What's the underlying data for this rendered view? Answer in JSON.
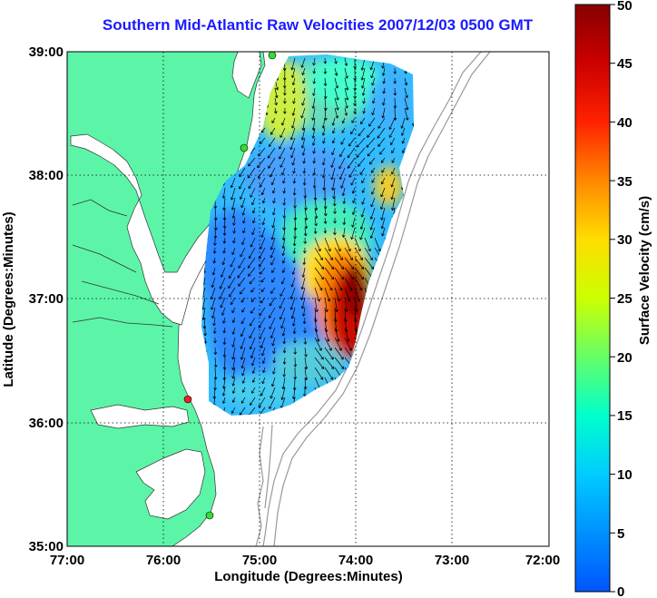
{
  "title": "Southern Mid-Atlantic Raw Velocities 2007/12/03 0500 GMT",
  "axes": {
    "xlabel": "Longitude (Degrees:Minutes)",
    "ylabel": "Latitude (Degrees:Minutes)",
    "x_ticks": [
      "77:00",
      "76:00",
      "75:00",
      "74:00",
      "73:00",
      "72:00"
    ],
    "y_ticks": [
      "39:00",
      "38:00",
      "37:00",
      "36:00",
      "35:00"
    ]
  },
  "colorbar": {
    "label": "Surface Velocity (cm/s)",
    "ticks": [
      "50",
      "45",
      "40",
      "35",
      "30",
      "25",
      "20",
      "15",
      "10",
      "5",
      "0"
    ],
    "min": 0,
    "max": 50
  },
  "colors": {
    "land": "#5cf5a8",
    "ocean": "#ffffff",
    "title": "#1a1aff",
    "bathymetry": "#999999",
    "grid": "#000000",
    "station_green": "#33dd33",
    "station_red": "#ee2222"
  },
  "chart_data": {
    "type": "heatmap",
    "title": "Southern Mid-Atlantic Raw Velocities 2007/12/03 0500 GMT",
    "xlabel": "Longitude (Degrees:Minutes)",
    "ylabel": "Latitude (Degrees:Minutes)",
    "xlim": [
      "77:00",
      "72:00"
    ],
    "ylim": [
      "35:00",
      "39:00"
    ],
    "colorbar_label": "Surface Velocity (cm/s)",
    "colorbar_range": [
      0,
      50
    ],
    "grid": true,
    "stations": [
      {
        "lon": "75:06",
        "lat": "38:57",
        "color": "green"
      },
      {
        "lon": "75:09",
        "lat": "38:14",
        "color": "green"
      },
      {
        "lon": "75:47",
        "lat": "36:12",
        "color": "red"
      },
      {
        "lon": "75:31",
        "lat": "35:15",
        "color": "green"
      }
    ]
  }
}
